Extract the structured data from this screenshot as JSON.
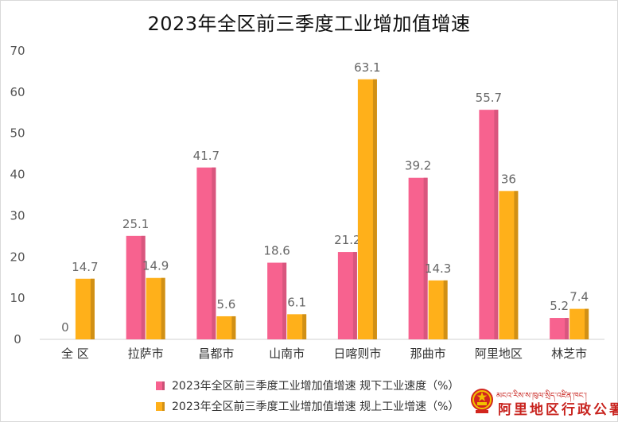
{
  "chart_data": {
    "type": "bar",
    "title": "2023年全区前三季度工业增加值增速",
    "categories": [
      "全 区",
      "拉萨市",
      "昌都市",
      "山南市",
      "日喀则市",
      "那曲市",
      "阿里地区",
      "林芝市"
    ],
    "series": [
      {
        "name": "2023年全区前三季度工业增加值增速 规下工业速度（%）",
        "color": "#f7628f",
        "values": [
          0,
          25.1,
          41.7,
          18.6,
          21.2,
          39.2,
          55.7,
          5.2
        ]
      },
      {
        "name": "2023年全区前三季度工业增加值增速 规上工业增速（%）",
        "color": "#ffb01a",
        "values": [
          14.7,
          14.9,
          5.6,
          6.1,
          63.1,
          14.3,
          36,
          7.4
        ]
      }
    ],
    "ylim": [
      0,
      70
    ],
    "yticks": [
      0,
      10,
      20,
      30,
      40,
      50,
      60,
      70
    ],
    "grid": false,
    "legend_position": "bottom",
    "xlabel": "",
    "ylabel": ""
  },
  "watermark": {
    "tibetan_text": "མངའ་རིས་ས་ཁུལ་སྲིད་འཛིན་ཁང་།",
    "chinese_text": "阿里地区行政公署",
    "emblem_icon": "national-emblem-icon"
  }
}
